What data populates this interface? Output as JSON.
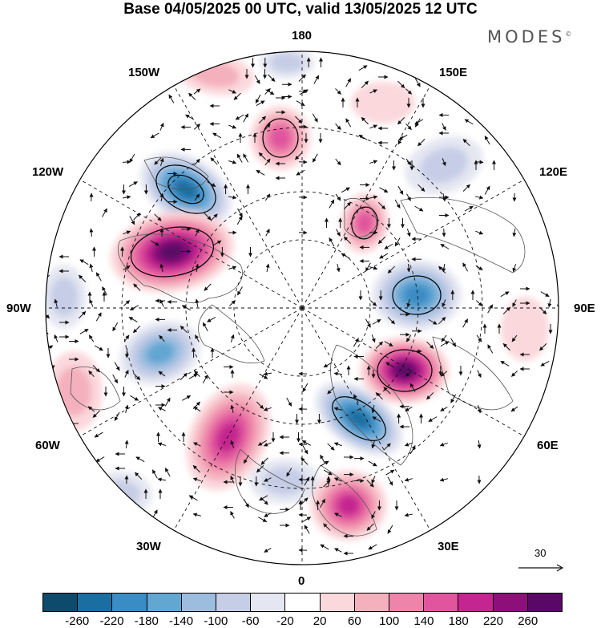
{
  "title": "Base 04/05/2025 00 UTC, valid 13/05/2025 12 UTC",
  "brand": "MODES",
  "brand_mark": "©",
  "longitude_labels": {
    "top": "180",
    "bottom": "0",
    "left": "90W",
    "right": "90E",
    "upper_left_1": "150W",
    "upper_left_2": "120W",
    "lower_left_1": "60W",
    "lower_left_2": "30W",
    "upper_right_1": "150E",
    "upper_right_2": "120E",
    "lower_right_1": "60E",
    "lower_right_2": "30E"
  },
  "reference_vector_label": "30",
  "colorbar": {
    "colors": [
      "#0d4a6b",
      "#1a6ea1",
      "#3a8cc4",
      "#62a6d2",
      "#9cbde0",
      "#c6cde6",
      "#e4e6f1",
      "#ffffff",
      "#fbd8dc",
      "#f4b1bd",
      "#ee84a9",
      "#e0559d",
      "#c42590",
      "#8d0f7a",
      "#5a0868"
    ],
    "tick_labels": [
      "-260",
      "-220",
      "-180",
      "-140",
      "-100",
      "-60",
      "-20",
      "20",
      "60",
      "100",
      "140",
      "180",
      "220",
      "260"
    ]
  },
  "anomaly_field": {
    "negative_color": "#2e7bb4",
    "positive_color": "#c4258f",
    "neutral_color": "#ffffff"
  },
  "map_colors": {
    "coastline": "#555555",
    "graticule": "#111111",
    "wind_arrows": "#111111",
    "contours": "#000000"
  }
}
